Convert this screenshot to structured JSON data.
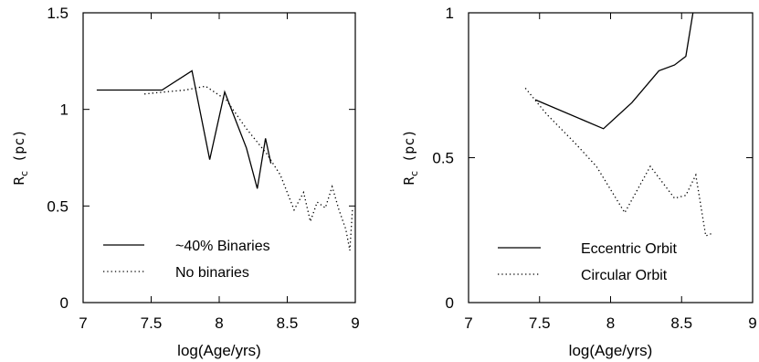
{
  "chart_data": [
    {
      "type": "line",
      "xlabel": "log(Age/yrs)",
      "ylabel": "R",
      "ylabel_sub": "c",
      "ylabel_unit": " (pc)",
      "xlim": [
        7,
        9
      ],
      "ylim": [
        0,
        1.5
      ],
      "xticks": [
        7,
        7.5,
        8,
        8.5,
        9
      ],
      "xtick_labels": [
        "7",
        "7.5",
        "8",
        "8.5",
        "9"
      ],
      "yticks": [
        0,
        0.5,
        1,
        1.5
      ],
      "ytick_labels": [
        "0",
        "0.5",
        "1",
        "1.5"
      ],
      "legend": "bottom-left",
      "grid": false,
      "series": [
        {
          "name": "~40% Binaries",
          "style": "solid",
          "x": [
            7.1,
            7.58,
            7.8,
            7.93,
            8.04,
            8.2,
            8.28,
            8.34,
            8.38
          ],
          "y": [
            1.1,
            1.1,
            1.2,
            0.74,
            1.09,
            0.8,
            0.59,
            0.85,
            0.72
          ]
        },
        {
          "name": "No binaries",
          "style": "dotted",
          "x": [
            7.45,
            7.6,
            7.75,
            7.9,
            8.05,
            8.2,
            8.35,
            8.45,
            8.55,
            8.62,
            8.67,
            8.72,
            8.78,
            8.83,
            8.88,
            8.93,
            8.96,
            8.98
          ],
          "y": [
            1.08,
            1.09,
            1.1,
            1.12,
            1.05,
            0.9,
            0.77,
            0.66,
            0.48,
            0.57,
            0.42,
            0.52,
            0.49,
            0.6,
            0.48,
            0.38,
            0.27,
            0.49
          ]
        }
      ]
    },
    {
      "type": "line",
      "xlabel": "log(Age/yrs)",
      "ylabel": "R",
      "ylabel_sub": "c",
      "ylabel_unit": " (pc)",
      "xlim": [
        7,
        9
      ],
      "ylim": [
        0,
        1
      ],
      "xticks": [
        7,
        7.5,
        8,
        8.5,
        9
      ],
      "xtick_labels": [
        "7",
        "7.5",
        "8",
        "8.5",
        "9"
      ],
      "yticks": [
        0,
        0.5,
        1
      ],
      "ytick_labels": [
        "0",
        "0.5",
        "1"
      ],
      "legend": "bottom-left",
      "grid": false,
      "series": [
        {
          "name": "Eccentric Orbit",
          "style": "solid",
          "x": [
            7.47,
            7.95,
            8.15,
            8.34,
            8.45,
            8.53,
            8.58
          ],
          "y": [
            0.7,
            0.6,
            0.69,
            0.8,
            0.82,
            0.85,
            1.0
          ]
        },
        {
          "name": "Circular Orbit",
          "style": "dotted",
          "x": [
            7.4,
            7.55,
            7.75,
            7.9,
            8.1,
            8.28,
            8.45,
            8.53,
            8.6,
            8.67,
            8.72
          ],
          "y": [
            0.74,
            0.65,
            0.55,
            0.47,
            0.31,
            0.47,
            0.36,
            0.37,
            0.44,
            0.23,
            0.24
          ]
        }
      ]
    }
  ]
}
